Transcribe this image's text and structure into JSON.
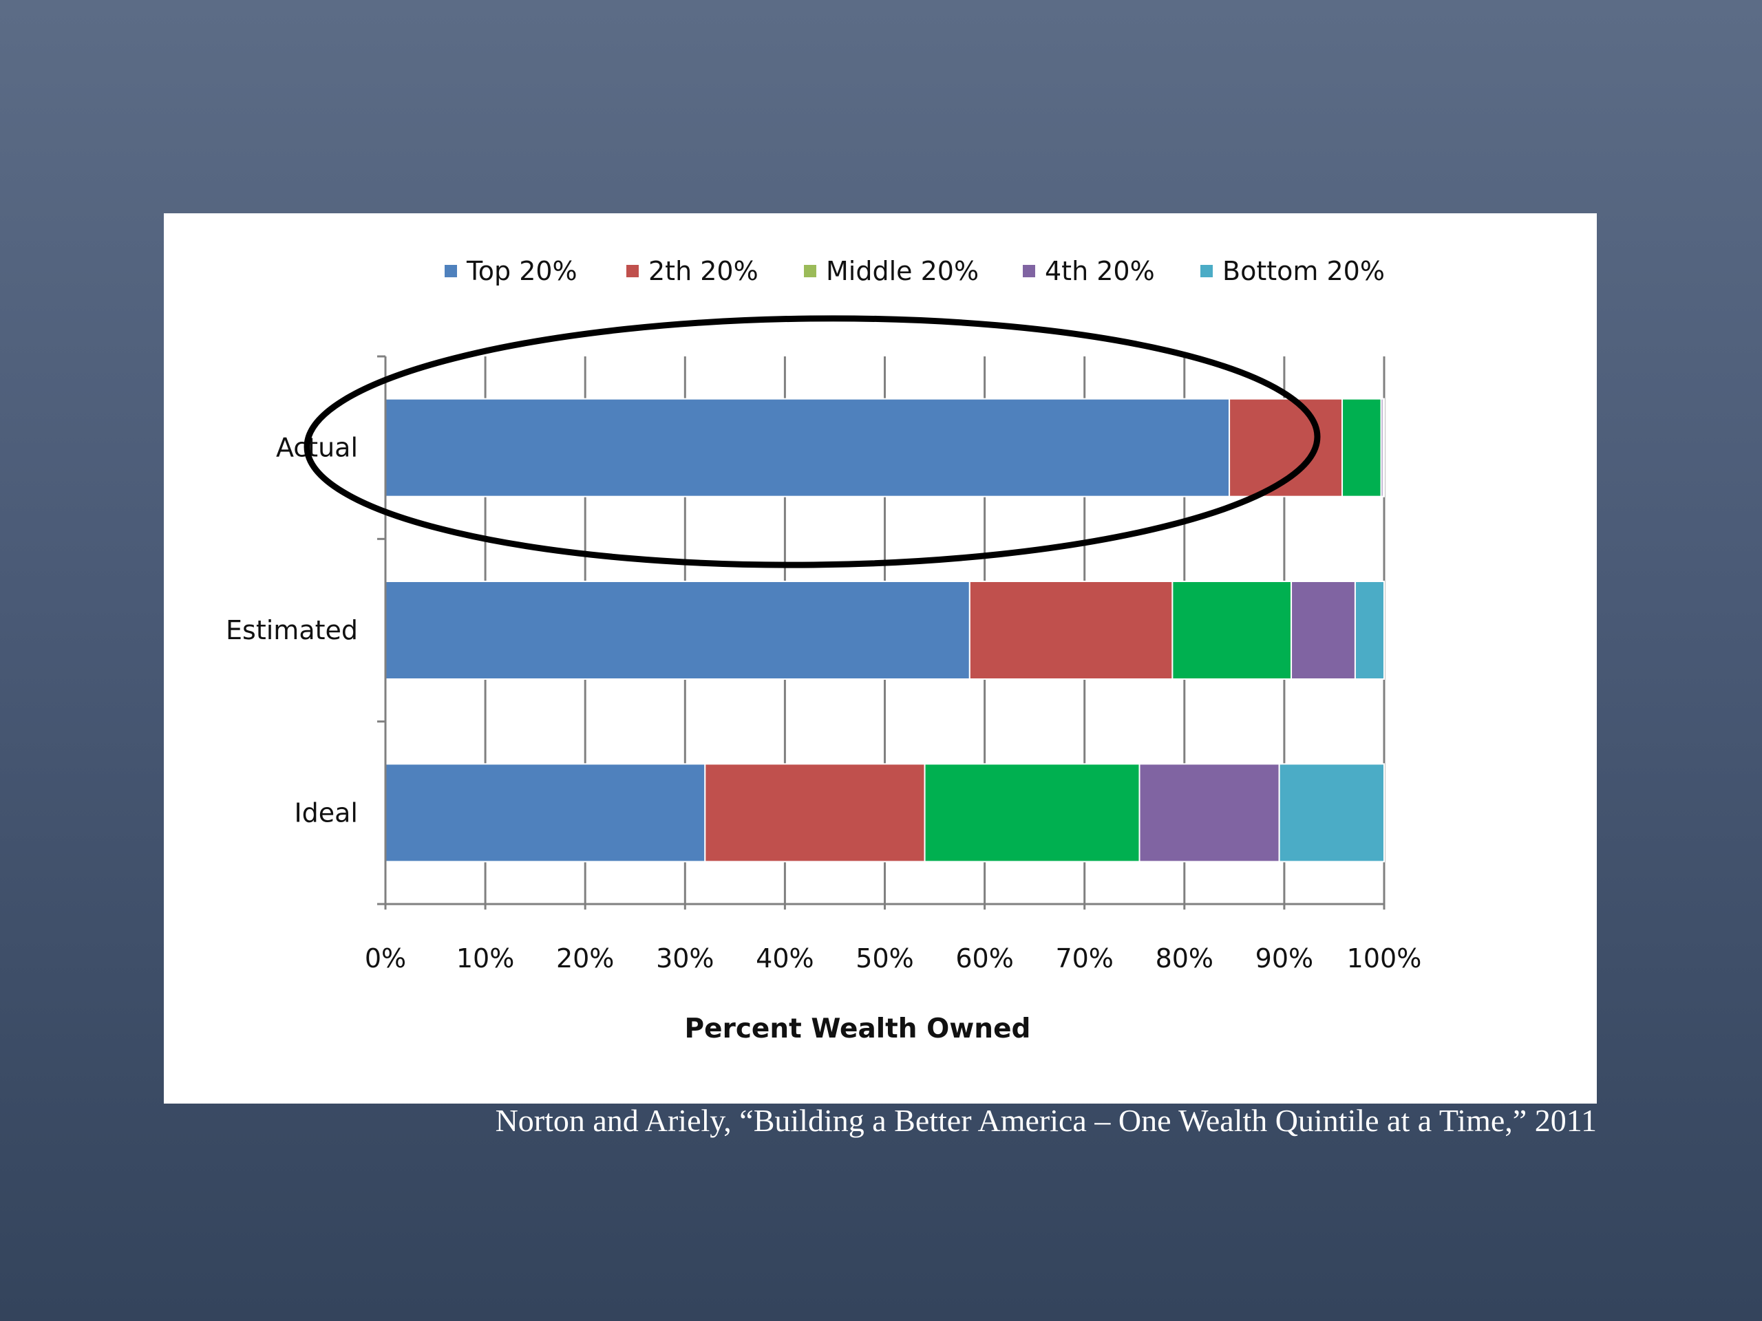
{
  "citation": "Norton and Ariely, “Building a Better America – One Wealth Quintile at a Time,” 2011",
  "chart_data": {
    "type": "bar",
    "orientation": "horizontal",
    "stacked": true,
    "categories": [
      "Actual",
      "Estimated",
      "Ideal"
    ],
    "series": [
      {
        "name": "Top 20%",
        "color": "#4f81bd",
        "values": [
          84.5,
          58.5,
          32
        ]
      },
      {
        "name": "2th 20%",
        "color": "#c0504d",
        "values": [
          11.3,
          20.3,
          22
        ]
      },
      {
        "name": "Middle 20%",
        "color": "#00b050",
        "values": [
          3.9,
          11.9,
          21.5
        ]
      },
      {
        "name": "4th 20%",
        "color": "#8064a2",
        "values": [
          0.2,
          6.4,
          14
        ]
      },
      {
        "name": "Bottom 20%",
        "color": "#4bacc6",
        "values": [
          0.1,
          2.9,
          10.5
        ]
      }
    ],
    "legend_colors": [
      "#4f81bd",
      "#c0504d",
      "#9bbb59",
      "#8064a2",
      "#4bacc6"
    ],
    "x_ticks": [
      "0%",
      "10%",
      "20%",
      "30%",
      "40%",
      "50%",
      "60%",
      "70%",
      "80%",
      "90%",
      "100%"
    ],
    "xlim": [
      0,
      100
    ],
    "xlabel": "Percent Wealth Owned",
    "ylabel": "",
    "title": "",
    "grid": "vertical",
    "legend_position": "top",
    "annotation": {
      "shape": "ellipse",
      "highlights": "Actual",
      "color": "#000000"
    }
  }
}
